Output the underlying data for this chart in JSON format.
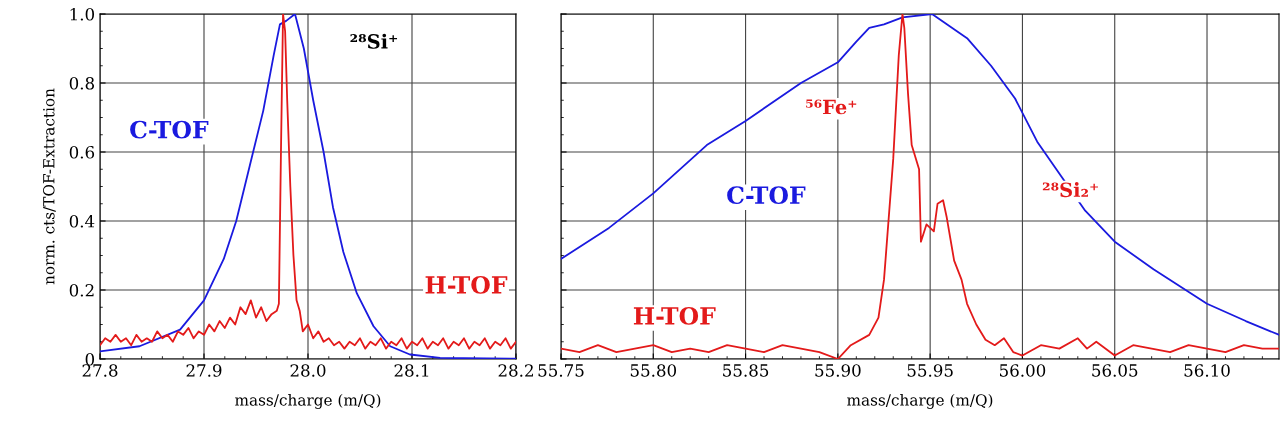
{
  "chart_data": [
    {
      "type": "line",
      "xlabel": "mass/charge (m/Q)",
      "ylabel": "norm. cts/TOF-Extraction",
      "xlim": [
        27.8,
        28.2
      ],
      "xticks": [
        27.8,
        27.9,
        {
          "value": 28.0,
          "label": "28.0"
        },
        28.1,
        28.2
      ],
      "ylim": [
        0,
        1.0
      ],
      "yticks": [
        0,
        0.2,
        0.4,
        0.6,
        0.8,
        {
          "value": 1.0,
          "label": "1.0"
        }
      ],
      "grid": true,
      "legend": false,
      "marker": "none",
      "line_style": "solid",
      "annotations": [
        "²⁸Si⁺"
      ],
      "series": [
        {
          "name": "C-TOF",
          "color": "#1a1adf",
          "x": [
            27.8,
            27.838,
            27.877,
            27.9,
            27.919,
            27.931,
            27.944,
            27.957,
            27.967,
            27.973,
            27.979,
            27.9875,
            27.996,
            28.005,
            28.015,
            28.024,
            28.034,
            28.047,
            28.063,
            28.079,
            28.098,
            28.127,
            28.2
          ],
          "values": [
            0.022,
            0.037,
            0.085,
            0.17,
            0.29,
            0.4,
            0.56,
            0.72,
            0.88,
            0.97,
            0.98,
            1.0,
            0.9,
            0.75,
            0.6,
            0.44,
            0.31,
            0.19,
            0.095,
            0.037,
            0.013,
            0.003,
            0.001
          ]
        },
        {
          "name": "H-TOF",
          "color": "#e31a1a",
          "x": [
            27.8,
            27.805,
            27.81,
            27.815,
            27.82,
            27.825,
            27.83,
            27.835,
            27.84,
            27.845,
            27.85,
            27.855,
            27.86,
            27.865,
            27.87,
            27.875,
            27.88,
            27.885,
            27.89,
            27.895,
            27.9,
            27.905,
            27.91,
            27.915,
            27.92,
            27.925,
            27.93,
            27.935,
            27.94,
            27.945,
            27.95,
            27.955,
            27.96,
            27.965,
            27.97,
            27.972,
            27.974,
            27.976,
            27.978,
            27.98,
            27.983,
            27.986,
            27.989,
            27.992,
            27.995,
            28.0,
            28.005,
            28.01,
            28.015,
            28.02,
            28.025,
            28.03,
            28.035,
            28.04,
            28.045,
            28.05,
            28.055,
            28.06,
            28.065,
            28.07,
            28.075,
            28.08,
            28.085,
            28.09,
            28.095,
            28.1,
            28.105,
            28.11,
            28.115,
            28.12,
            28.125,
            28.13,
            28.135,
            28.14,
            28.145,
            28.15,
            28.155,
            28.16,
            28.165,
            28.17,
            28.175,
            28.18,
            28.185,
            28.19,
            28.195,
            28.2
          ],
          "values": [
            0.04,
            0.06,
            0.05,
            0.07,
            0.05,
            0.06,
            0.04,
            0.07,
            0.05,
            0.06,
            0.05,
            0.08,
            0.06,
            0.07,
            0.05,
            0.08,
            0.07,
            0.09,
            0.06,
            0.08,
            0.07,
            0.1,
            0.08,
            0.11,
            0.09,
            0.12,
            0.1,
            0.15,
            0.13,
            0.17,
            0.12,
            0.15,
            0.11,
            0.13,
            0.14,
            0.16,
            0.6,
            1.0,
            0.95,
            0.75,
            0.5,
            0.3,
            0.17,
            0.14,
            0.08,
            0.1,
            0.06,
            0.08,
            0.05,
            0.06,
            0.04,
            0.05,
            0.03,
            0.05,
            0.04,
            0.06,
            0.03,
            0.05,
            0.04,
            0.06,
            0.03,
            0.05,
            0.04,
            0.06,
            0.03,
            0.05,
            0.04,
            0.06,
            0.03,
            0.05,
            0.04,
            0.06,
            0.03,
            0.05,
            0.04,
            0.06,
            0.03,
            0.05,
            0.04,
            0.06,
            0.03,
            0.05,
            0.04,
            0.06,
            0.03,
            0.05
          ]
        }
      ]
    },
    {
      "type": "line",
      "xlabel": "mass/charge (m/Q)",
      "xlim": [
        55.75,
        56.139
      ],
      "xticks": [
        {
          "value": 55.75,
          "label": "55.75"
        },
        {
          "value": 55.8,
          "label": "55.80"
        },
        {
          "value": 55.85,
          "label": "55.85"
        },
        {
          "value": 55.9,
          "label": "55.90"
        },
        {
          "value": 55.95,
          "label": "55.95"
        },
        {
          "value": 56.0,
          "label": "56.00"
        },
        {
          "value": 56.05,
          "label": "56.05"
        },
        {
          "value": 56.1,
          "label": "56.10"
        }
      ],
      "ylim": [
        0,
        1.0
      ],
      "yticks": [
        0,
        0.2,
        0.4,
        0.6,
        0.8,
        1.0
      ],
      "tick_labels": "x",
      "grid": true,
      "legend": false,
      "marker": "none",
      "line_style": "solid",
      "annotations": [
        "⁵⁶Fe⁺",
        "²⁸Si₂⁺"
      ],
      "series": [
        {
          "name": "C-TOF",
          "color": "#1a1adf",
          "x": [
            55.75,
            55.776,
            55.8,
            55.829,
            55.85,
            55.88,
            55.9,
            55.91,
            55.917,
            55.925,
            55.935,
            55.951,
            55.97,
            55.983,
            55.996,
            56.008,
            56.021,
            56.034,
            56.05,
            56.071,
            56.1,
            56.121,
            56.139
          ],
          "values": [
            0.29,
            0.38,
            0.48,
            0.62,
            0.69,
            0.8,
            0.86,
            0.92,
            0.96,
            0.97,
            0.99,
            1.0,
            0.93,
            0.85,
            0.755,
            0.63,
            0.53,
            0.43,
            0.34,
            0.26,
            0.16,
            0.11,
            0.07
          ]
        },
        {
          "name": "H-TOF",
          "color": "#e31a1a",
          "x": [
            55.75,
            55.76,
            55.77,
            55.78,
            55.79,
            55.8,
            55.81,
            55.82,
            55.83,
            55.84,
            55.85,
            55.86,
            55.87,
            55.88,
            55.89,
            55.9,
            55.907,
            55.917,
            55.922,
            55.925,
            55.93,
            55.933,
            55.935,
            55.936,
            55.938,
            55.94,
            55.944,
            55.945,
            55.948,
            55.952,
            55.954,
            55.957,
            55.959,
            55.963,
            55.967,
            55.97,
            55.975,
            55.98,
            55.985,
            55.99,
            55.995,
            56.0,
            56.01,
            56.02,
            56.03,
            56.035,
            56.04,
            56.05,
            56.06,
            56.07,
            56.08,
            56.09,
            56.1,
            56.11,
            56.12,
            56.13,
            56.139
          ],
          "values": [
            0.03,
            0.02,
            0.04,
            0.02,
            0.03,
            0.04,
            0.02,
            0.03,
            0.02,
            0.04,
            0.03,
            0.02,
            0.04,
            0.03,
            0.02,
            0.0,
            0.04,
            0.07,
            0.12,
            0.23,
            0.58,
            0.88,
            1.0,
            0.96,
            0.77,
            0.62,
            0.55,
            0.34,
            0.39,
            0.37,
            0.45,
            0.46,
            0.41,
            0.285,
            0.23,
            0.16,
            0.1,
            0.056,
            0.04,
            0.06,
            0.02,
            0.01,
            0.04,
            0.03,
            0.06,
            0.03,
            0.05,
            0.01,
            0.04,
            0.03,
            0.02,
            0.04,
            0.03,
            0.02,
            0.04,
            0.03,
            0.03
          ]
        }
      ]
    }
  ]
}
